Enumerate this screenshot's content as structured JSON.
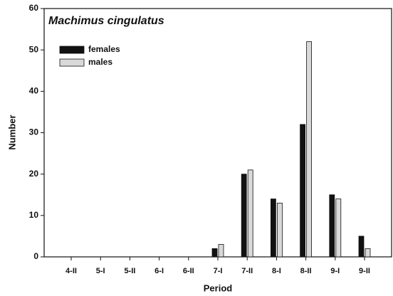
{
  "chart_data": {
    "type": "bar",
    "title": "Machimus cingulatus",
    "x_label": "Period",
    "y_label": "Number",
    "categories": [
      "4-II",
      "5-I",
      "5-II",
      "6-I",
      "6-II",
      "7-I",
      "7-II",
      "8-I",
      "8-II",
      "9-I",
      "9-II"
    ],
    "series": [
      {
        "name": "females",
        "color": "#111111",
        "values": [
          0,
          0,
          0,
          0,
          0,
          2,
          20,
          14,
          32,
          15,
          5
        ]
      },
      {
        "name": "males",
        "color": "#d9d9d9",
        "values": [
          0,
          0,
          0,
          0,
          0,
          3,
          21,
          13,
          52,
          14,
          2
        ]
      }
    ],
    "ylim": [
      0,
      60
    ],
    "yticks": [
      0,
      10,
      20,
      30,
      40,
      50,
      60
    ],
    "legend": "upper left"
  }
}
